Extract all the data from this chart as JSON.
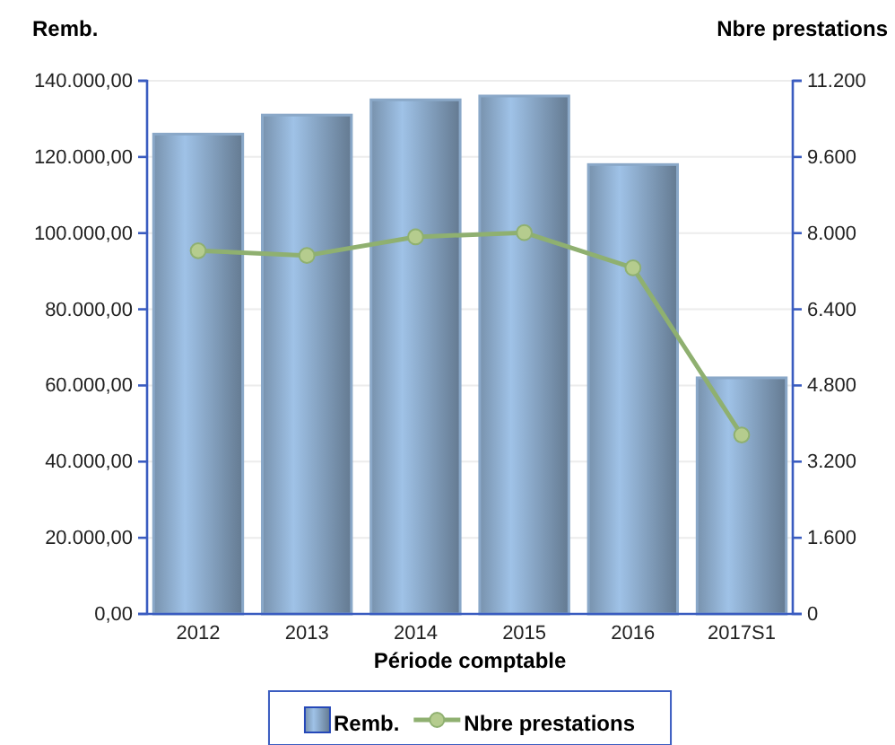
{
  "chart_data": {
    "type": "bar",
    "xlabel": "Période comptable",
    "ylabel": "Remb.",
    "y2label": "Nbre prestations",
    "categories": [
      "2012",
      "2013",
      "2014",
      "2015",
      "2016",
      "2017S1"
    ],
    "series": [
      {
        "name": "Remb.",
        "color": "#8aa8c8",
        "values": [
          126000,
          131000,
          135000,
          136000,
          118000,
          62000
        ]
      },
      {
        "name": "Nbre prestations",
        "type": "line",
        "axis": "y2",
        "color": "#8fb070",
        "marker": "circle",
        "values": [
          7630,
          7530,
          7920,
          8010,
          7270,
          3760
        ]
      }
    ],
    "ylim": [
      0,
      140000
    ],
    "yticks": [
      {
        "value": 0,
        "label": "0,00"
      },
      {
        "value": 20000,
        "label": "20.000,00"
      },
      {
        "value": 40000,
        "label": "40.000,00"
      },
      {
        "value": 60000,
        "label": "60.000,00"
      },
      {
        "value": 80000,
        "label": "80.000,00"
      },
      {
        "value": 100000,
        "label": "100.000,00"
      },
      {
        "value": 120000,
        "label": "120.000,00"
      },
      {
        "value": 140000,
        "label": "140.000,00"
      }
    ],
    "y2lim": [
      0,
      11200
    ],
    "y2ticks": [
      0,
      {
        "value": 1600,
        "label": "1.600"
      },
      {
        "value": 3200,
        "label": "3.200"
      },
      {
        "value": 4800,
        "label": "4.800"
      },
      {
        "value": 6400,
        "label": "6.400"
      },
      {
        "value": 8000,
        "label": "8.000"
      },
      {
        "value": 9600,
        "label": "9.600"
      },
      {
        "value": 11200,
        "label": "11.200"
      }
    ],
    "grid": "y",
    "legend": "bottom"
  }
}
